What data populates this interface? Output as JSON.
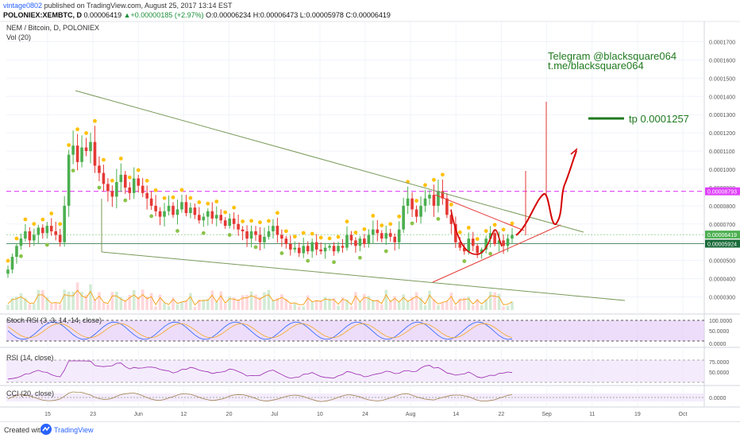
{
  "header": {
    "username": "vintage0802",
    "published": "published on TradingView.com, August 25, 2017 13:14 EST",
    "symbol": "POLONIEX:XEMBTC, D",
    "last": "0.00006419",
    "change": "+0.00000185 (+2.97%)",
    "open_label": "O:",
    "open": "0.00006234",
    "high_label": "H:",
    "high": "0.00006473",
    "low_label": "L:",
    "low": "0.00005978",
    "close_label": "C:",
    "close": "0.00006419"
  },
  "panes": {
    "main_title": "NEM / Bitcoin, D, POLONIEX",
    "vol_title": "Vol (20)",
    "stoch_title": "Stoch RSI (3, 3, 14, 14, close)",
    "rsi_title": "RSI (14, close)",
    "cci_title": "CCI (20, close)"
  },
  "annotations": {
    "telegram": "Telegram @blacksquare064",
    "tme": "t.me/blacksquare064",
    "tp": "tp 0.0001257"
  },
  "footer": {
    "created": "Created with",
    "brand": "TradingView"
  },
  "colors": {
    "up": "#4caf50",
    "down": "#e53935",
    "accent": "#2962ff",
    "magenta": "#e040fb",
    "trend": "#7a9a5a",
    "annotation": "#1f7a1f"
  },
  "chart_data": {
    "type": "candlestick",
    "symbol": "XEMBTC",
    "ylim": [
      2.5e-05,
      0.000175
    ],
    "price_axis_ticks": [
      "0.0001700",
      "0.0001600",
      "0.0001500",
      "0.0001400",
      "0.0001300",
      "0.0001200",
      "0.0001100",
      "0.0001000",
      "0.0000900",
      "0.0000800",
      "0.0000700",
      "0.0000600",
      "0.0000500",
      "0.0000400",
      "0.0000300"
    ],
    "price_labels": [
      {
        "text": "0.00008793",
        "value": 8.793e-05,
        "color": "#e040fb"
      },
      {
        "text": "0.00006419",
        "value": 6.419e-05,
        "color": "#4caf50"
      },
      {
        "text": "0.00005924",
        "value": 5.924e-05,
        "color": "#1b6b3a"
      }
    ],
    "time_axis_ticks": [
      "15",
      "23",
      "Jun",
      "12",
      "20",
      "Jul",
      "10",
      "24",
      "Aug",
      "14",
      "22",
      "Sep",
      "11",
      "19",
      "Oct"
    ],
    "candles_close": [
      4.5e-05,
      5.2e-05,
      5.8e-05,
      6.2e-05,
      6.6e-05,
      6.1e-05,
      6.4e-05,
      6.8e-05,
      6.5e-05,
      6.9e-05,
      6.6e-05,
      6.4e-05,
      6e-05,
      8e-05,
      0.000108,
      0.000113,
      0.000104,
      0.000112,
      0.00011,
      0.000115,
      0.000102,
      9.8e-05,
      9.2e-05,
      8.8e-05,
      8.5e-05,
      9.3e-05,
      9.7e-05,
      9e-05,
      8.7e-05,
      9.5e-05,
      9.1e-05,
      8.7e-05,
      8.4e-05,
      8e-05,
      7.7e-05,
      7.4e-05,
      7.7e-05,
      8e-05,
      7.5e-05,
      7.8e-05,
      8.2e-05,
      7.6e-05,
      7.9e-05,
      7.5e-05,
      7.2e-05,
      7.4e-05,
      7.7e-05,
      7.3e-05,
      7.5e-05,
      7.2e-05,
      6.9e-05,
      7.3e-05,
      7e-05,
      6.7e-05,
      6.6e-05,
      6.2e-05,
      6.6e-05,
      6.4e-05,
      6e-05,
      6.3e-05,
      6.6e-05,
      6.9e-05,
      6.4e-05,
      6.2e-05,
      5.9e-05,
      5.6e-05,
      5.7e-05,
      5.4e-05,
      5.8e-05,
      5.5e-05,
      6e-05,
      5.6e-05,
      5.5e-05,
      5.7e-05,
      5.8e-05,
      5.5e-05,
      5.8e-05,
      5.7e-05,
      6.4e-05,
      6.1e-05,
      5.8e-05,
      6.2e-05,
      5.9e-05,
      6.4e-05,
      6.7e-05,
      6.5e-05,
      6.2e-05,
      6.5e-05,
      6.3e-05,
      6e-05,
      6.7e-05,
      8e-05,
      8.4e-05,
      7.8e-05,
      7.4e-05,
      8e-05,
      8.4e-05,
      8.6e-05,
      8e-05,
      8.8e-05,
      8.4e-05,
      7.5e-05,
      7e-05,
      6e-05,
      5.7e-05,
      5.5e-05,
      6.2e-05,
      5.8e-05,
      5.4e-05,
      5.6e-05,
      6.2e-05,
      6.5e-05,
      5.9e-05,
      6.1e-05,
      5.8e-05,
      6.2e-05,
      6.4e-05
    ],
    "overlay_lines": [
      {
        "name": "upper-trendline",
        "color": "#7a9a5a"
      },
      {
        "name": "lower-trendline",
        "color": "#7a9a5a"
      },
      {
        "name": "resistance-0.00008793",
        "color": "#e040fb",
        "dashed": true
      },
      {
        "name": "support-0.00005924",
        "color": "#1b6b3a"
      },
      {
        "name": "current-0.00006419",
        "color": "#4caf50"
      },
      {
        "name": "triangle-upper",
        "color": "#e53935"
      },
      {
        "name": "triangle-lower",
        "color": "#e53935"
      },
      {
        "name": "projection-path",
        "color": "#d50000"
      }
    ],
    "indicators": {
      "stoch_rsi": {
        "ticks": [
          "100.0000",
          "50.0000",
          "0.0000"
        ],
        "ylim": [
          0,
          100
        ]
      },
      "rsi": {
        "ticks": [
          "75.0000",
          "50.0000"
        ],
        "ylim": [
          25,
          85
        ]
      },
      "cci": {
        "ticks": [
          "0.0000"
        ],
        "ylim": [
          -300,
          300
        ]
      }
    }
  }
}
